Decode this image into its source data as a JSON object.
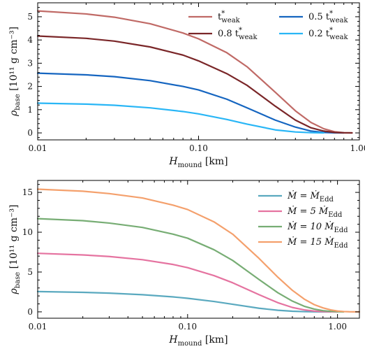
{
  "chart_data": [
    {
      "type": "line",
      "xscale": "log",
      "xlim": [
        0.01,
        1.0
      ],
      "ylim": [
        -0.3,
        5.6
      ],
      "xlabel": {
        "main": "H",
        "sub": "mound",
        "unit": " [km]"
      },
      "ylabel": {
        "main": "ρ",
        "sub": "base",
        "unit": " [10¹¹ g cm⁻³]"
      },
      "xticks": [
        0.01,
        0.1,
        1.0
      ],
      "xtick_labels": [
        "0.01",
        "0.10",
        "1.00"
      ],
      "yticks": [
        0,
        1,
        2,
        3,
        4,
        5
      ],
      "ytick_labels": [
        "0",
        "1",
        "2",
        "3",
        "4",
        "5"
      ],
      "legend": {
        "placement": "top-right",
        "columns": 2
      },
      "series": [
        {
          "name": "t*weak",
          "label_main": "t",
          "label_sup": "*",
          "label_sub": "weak",
          "color": "#c06a66",
          "x": [
            0.01,
            0.02,
            0.03,
            0.05,
            0.08,
            0.1,
            0.15,
            0.2,
            0.3,
            0.4,
            0.5,
            0.6,
            0.7,
            0.8,
            0.9
          ],
          "y": [
            5.25,
            5.12,
            4.98,
            4.7,
            4.3,
            4.05,
            3.45,
            2.85,
            1.75,
            0.95,
            0.45,
            0.18,
            0.05,
            0.01,
            0.0
          ]
        },
        {
          "name": "0.5 t*weak",
          "label_main": "0.5 t",
          "label_sup": "*",
          "label_sub": "weak",
          "color": "#1565c0",
          "x": [
            0.01,
            0.02,
            0.03,
            0.05,
            0.08,
            0.1,
            0.15,
            0.2,
            0.3,
            0.4,
            0.5,
            0.6,
            0.7,
            0.8
          ],
          "y": [
            2.57,
            2.5,
            2.42,
            2.25,
            2.0,
            1.85,
            1.45,
            1.08,
            0.55,
            0.25,
            0.08,
            0.02,
            0.005,
            0.0
          ]
        },
        {
          "name": "0.8 t*weak",
          "label_main": "0.8 t",
          "label_sup": "*",
          "label_sub": "weak",
          "color": "#7a2628",
          "x": [
            0.01,
            0.02,
            0.03,
            0.05,
            0.08,
            0.1,
            0.15,
            0.2,
            0.3,
            0.4,
            0.5,
            0.6,
            0.7,
            0.8,
            0.9
          ],
          "y": [
            4.17,
            4.07,
            3.95,
            3.7,
            3.35,
            3.1,
            2.55,
            2.05,
            1.15,
            0.55,
            0.22,
            0.08,
            0.02,
            0.005,
            0.0
          ]
        },
        {
          "name": "0.2 t*weak",
          "label_main": "0.2 t",
          "label_sup": "*",
          "label_sub": "weak",
          "color": "#29b6f6",
          "x": [
            0.01,
            0.02,
            0.03,
            0.05,
            0.08,
            0.1,
            0.15,
            0.2,
            0.3,
            0.4,
            0.5,
            0.6
          ],
          "y": [
            1.28,
            1.24,
            1.19,
            1.08,
            0.92,
            0.82,
            0.58,
            0.38,
            0.13,
            0.04,
            0.01,
            0.0
          ]
        }
      ]
    },
    {
      "type": "line",
      "xscale": "log",
      "xlim": [
        0.01,
        1.4
      ],
      "ylim": [
        -0.8,
        16.5
      ],
      "xlabel": {
        "main": "H",
        "sub": "mound",
        "unit": " [km]"
      },
      "ylabel": {
        "main": "ρ",
        "sub": "base",
        "unit": " [10¹¹ g cm⁻³]"
      },
      "xticks": [
        0.01,
        0.1,
        1.0
      ],
      "xtick_labels": [
        "0.01",
        "0.10",
        "1.00"
      ],
      "yticks": [
        0,
        5,
        10,
        15
      ],
      "ytick_labels": [
        "0",
        "5",
        "10",
        "15"
      ],
      "legend": {
        "placement": "top-right",
        "columns": 1
      },
      "series": [
        {
          "name": "Ṁ = ṀEdd",
          "label_main": "Ṁ = Ṁ",
          "label_sub": "Edd",
          "color": "#5aa9bf",
          "x": [
            0.01,
            0.02,
            0.03,
            0.05,
            0.08,
            0.1,
            0.15,
            0.2,
            0.3,
            0.4,
            0.5,
            0.6,
            0.7,
            0.8,
            0.9
          ],
          "y": [
            2.55,
            2.45,
            2.35,
            2.15,
            1.88,
            1.7,
            1.3,
            0.95,
            0.45,
            0.2,
            0.08,
            0.03,
            0.01,
            0.0,
            0.0
          ]
        },
        {
          "name": "Ṁ = 5 ṀEdd",
          "label_main": "Ṁ = 5 Ṁ",
          "label_sub": "Edd",
          "color": "#e573a0",
          "x": [
            0.01,
            0.02,
            0.03,
            0.05,
            0.08,
            0.1,
            0.15,
            0.2,
            0.3,
            0.4,
            0.5,
            0.6,
            0.7,
            0.8,
            0.9,
            1.0
          ],
          "y": [
            7.35,
            7.15,
            6.95,
            6.55,
            5.95,
            5.55,
            4.55,
            3.65,
            2.15,
            1.15,
            0.55,
            0.25,
            0.1,
            0.03,
            0.01,
            0.0
          ]
        },
        {
          "name": "Ṁ = 10 ṀEdd",
          "label_main": "Ṁ = 10 Ṁ",
          "label_sub": "Edd",
          "color": "#77ad74",
          "x": [
            0.01,
            0.02,
            0.03,
            0.05,
            0.08,
            0.1,
            0.15,
            0.2,
            0.3,
            0.4,
            0.5,
            0.6,
            0.7,
            0.8,
            0.9,
            1.0,
            1.1
          ],
          "y": [
            11.7,
            11.45,
            11.15,
            10.6,
            9.75,
            9.25,
            7.8,
            6.45,
            4.05,
            2.4,
            1.35,
            0.7,
            0.35,
            0.15,
            0.06,
            0.02,
            0.0
          ]
        },
        {
          "name": "Ṁ = 15 ṀEdd",
          "label_main": "Ṁ = 15 Ṁ",
          "label_sub": "Edd",
          "color": "#f4a06c",
          "x": [
            0.01,
            0.02,
            0.03,
            0.05,
            0.08,
            0.1,
            0.15,
            0.2,
            0.3,
            0.4,
            0.5,
            0.6,
            0.7,
            0.8,
            0.9,
            1.0,
            1.1,
            1.2,
            1.4
          ],
          "y": [
            15.4,
            15.15,
            14.85,
            14.3,
            13.4,
            12.85,
            11.3,
            9.75,
            6.7,
            4.35,
            2.7,
            1.6,
            0.9,
            0.5,
            0.25,
            0.1,
            0.04,
            0.01,
            0.0
          ]
        }
      ]
    }
  ]
}
